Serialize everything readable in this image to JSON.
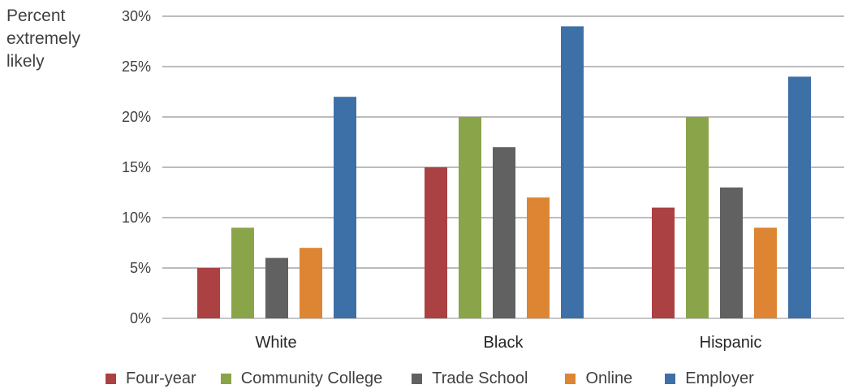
{
  "chart_data": {
    "type": "bar",
    "ylabel": "Percent extremely likely",
    "ylabel_lines": [
      "Percent",
      "extremely",
      "likely"
    ],
    "ylim": [
      0,
      30
    ],
    "yticks": [
      "0%",
      "5%",
      "10%",
      "15%",
      "20%",
      "25%",
      "30%"
    ],
    "ytick_values": [
      0,
      5,
      10,
      15,
      20,
      25,
      30
    ],
    "grid": true,
    "legend_position": "bottom",
    "categories": [
      "White",
      "Black",
      "Hispanic"
    ],
    "series": [
      {
        "name": "Four-year",
        "color": "#ab4143",
        "values": [
          5,
          15,
          11
        ]
      },
      {
        "name": "Community College",
        "color": "#8aa44a",
        "values": [
          9,
          20,
          20
        ]
      },
      {
        "name": "Trade School",
        "color": "#616161",
        "values": [
          6,
          17,
          13
        ]
      },
      {
        "name": "Online",
        "color": "#dd8533",
        "values": [
          7,
          12,
          9
        ]
      },
      {
        "name": "Employer",
        "color": "#3e70a8",
        "values": [
          22,
          29,
          24
        ]
      }
    ]
  }
}
